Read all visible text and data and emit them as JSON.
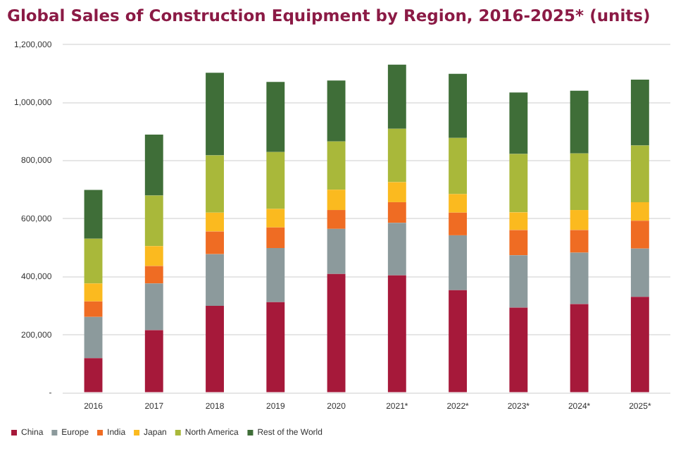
{
  "chart_data": {
    "type": "bar",
    "title": "Global Sales of Construction Equipment by Region, 2016-2025* (units)",
    "categories": [
      "2016",
      "2017",
      "2018",
      "2019",
      "2020",
      "2021*",
      "2022*",
      "2023*",
      "2024*",
      "2025*"
    ],
    "stacked": true,
    "series": [
      {
        "name": "China",
        "color": "#a6193a",
        "values": [
          120000,
          216000,
          300000,
          313000,
          410000,
          405000,
          354000,
          294000,
          306000,
          331000
        ]
      },
      {
        "name": "Europe",
        "color": "#8c9a9c",
        "values": [
          142000,
          161000,
          178000,
          186000,
          155000,
          181000,
          189000,
          180000,
          177000,
          166000
        ]
      },
      {
        "name": "India",
        "color": "#ef6c23",
        "values": [
          53000,
          60000,
          78000,
          71000,
          65000,
          71000,
          78000,
          87000,
          78000,
          96000
        ]
      },
      {
        "name": "Japan",
        "color": "#fbba1f",
        "values": [
          62000,
          69000,
          65000,
          64000,
          70000,
          69000,
          64000,
          61000,
          69000,
          64000
        ]
      },
      {
        "name": "North America",
        "color": "#a9b83a",
        "values": [
          154000,
          174000,
          197000,
          196000,
          166000,
          184000,
          193000,
          201000,
          195000,
          195000
        ]
      },
      {
        "name": "Rest of the World",
        "color": "#3f6e38",
        "values": [
          168000,
          210000,
          285000,
          241000,
          210000,
          221000,
          221000,
          212000,
          216000,
          227000
        ]
      }
    ],
    "ylim": [
      0,
      1200000
    ],
    "yticks": [
      {
        "value": 0,
        "label": "-"
      },
      {
        "value": 200000,
        "label": "200,000"
      },
      {
        "value": 400000,
        "label": "400,000"
      },
      {
        "value": 600000,
        "label": "600,000"
      },
      {
        "value": 800000,
        "label": "800,000"
      },
      {
        "value": 1000000,
        "label": "1,000,000"
      },
      {
        "value": 1200000,
        "label": "1,200,000"
      }
    ],
    "grid": "y",
    "legend": "bottom left"
  }
}
